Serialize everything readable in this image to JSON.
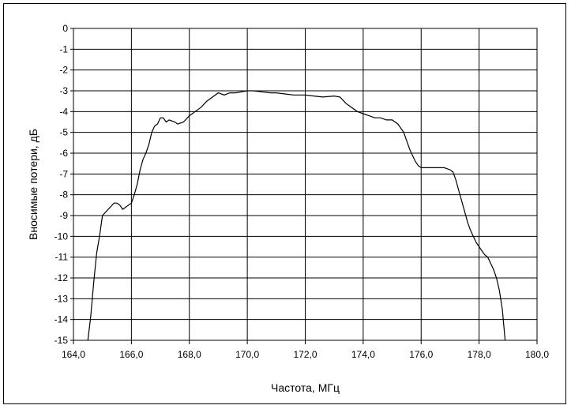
{
  "chart_data": {
    "type": "line",
    "title": "",
    "xlabel": "Частота, МГц",
    "ylabel": "Вносимые потери, дБ",
    "xlim": [
      164.0,
      180.0
    ],
    "ylim": [
      -15,
      0
    ],
    "x_ticks": [
      "164,0",
      "166,0",
      "168,0",
      "170,0",
      "172,0",
      "174,0",
      "176,0",
      "178,0",
      "180,0"
    ],
    "y_ticks": [
      "0",
      "-1",
      "-2",
      "-3",
      "-4",
      "-5",
      "-6",
      "-7",
      "-8",
      "-9",
      "-10",
      "-11",
      "-12",
      "-13",
      "-14",
      "-15"
    ],
    "grid": true,
    "legend": "none",
    "line_color": "#000000",
    "series": [
      {
        "x": [
          164.5,
          164.6,
          164.7,
          164.8,
          164.9,
          165.0,
          165.2,
          165.4,
          165.5,
          165.6,
          165.7,
          165.8,
          165.9,
          166.0,
          166.1,
          166.2,
          166.3,
          166.4,
          166.5,
          166.6,
          166.7,
          166.8,
          166.9,
          167.0,
          167.1,
          167.2,
          167.3,
          167.5,
          167.6,
          167.8,
          168.0,
          168.2,
          168.4,
          168.6,
          168.8,
          169.0,
          169.2,
          169.4,
          169.6,
          169.8,
          170.0,
          170.2,
          170.5,
          170.8,
          171.0,
          171.3,
          171.6,
          172.0,
          172.3,
          172.6,
          173.0,
          173.2,
          173.4,
          173.6,
          173.8,
          174.0,
          174.2,
          174.4,
          174.6,
          174.8,
          175.0,
          175.2,
          175.4,
          175.5,
          175.6,
          175.7,
          175.8,
          175.9,
          176.0,
          176.2,
          176.4,
          176.6,
          176.8,
          177.0,
          177.1,
          177.2,
          177.3,
          177.4,
          177.5,
          177.6,
          177.7,
          177.8,
          177.9,
          178.0,
          178.1,
          178.2,
          178.3,
          178.4,
          178.5,
          178.6,
          178.7,
          178.8,
          178.9
        ],
        "y": [
          -15.0,
          -13.8,
          -12.2,
          -10.8,
          -10.0,
          -9.0,
          -8.7,
          -8.4,
          -8.4,
          -8.5,
          -8.7,
          -8.6,
          -8.5,
          -8.4,
          -8.0,
          -7.5,
          -6.8,
          -6.3,
          -6.0,
          -5.6,
          -5.0,
          -4.7,
          -4.6,
          -4.3,
          -4.3,
          -4.5,
          -4.4,
          -4.5,
          -4.6,
          -4.5,
          -4.2,
          -4.0,
          -3.8,
          -3.5,
          -3.3,
          -3.1,
          -3.2,
          -3.1,
          -3.1,
          -3.05,
          -3.0,
          -3.0,
          -3.05,
          -3.1,
          -3.1,
          -3.15,
          -3.2,
          -3.2,
          -3.25,
          -3.3,
          -3.25,
          -3.3,
          -3.6,
          -3.8,
          -4.0,
          -4.1,
          -4.2,
          -4.3,
          -4.3,
          -4.4,
          -4.4,
          -4.6,
          -5.0,
          -5.4,
          -5.8,
          -6.1,
          -6.4,
          -6.6,
          -6.7,
          -6.7,
          -6.7,
          -6.7,
          -6.7,
          -6.8,
          -6.9,
          -7.3,
          -7.8,
          -8.3,
          -8.8,
          -9.3,
          -9.7,
          -10.0,
          -10.3,
          -10.5,
          -10.7,
          -10.9,
          -11.0,
          -11.3,
          -11.6,
          -12.0,
          -12.6,
          -13.5,
          -15.0
        ]
      }
    ]
  }
}
